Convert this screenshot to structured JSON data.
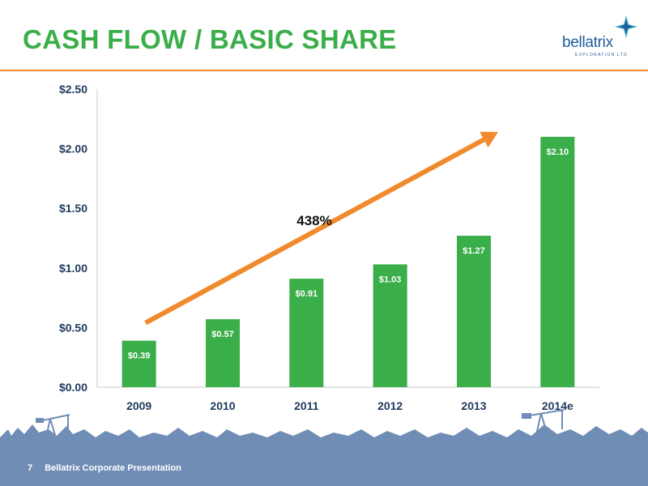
{
  "slide": {
    "title": "CASH FLOW / BASIC SHARE",
    "page_number": "7",
    "footer": "Bellatrix Corporate Presentation"
  },
  "logo": {
    "name": "bellatrix",
    "tagline": "EXPLORATION LTD",
    "icon": "star-icon"
  },
  "colors": {
    "title": "#3aae49",
    "bar": "#3aae49",
    "arrow": "#f08a2c",
    "axis_text": "#1f3a5c",
    "footer": "#6f8db5"
  },
  "chart_data": {
    "type": "bar",
    "categories": [
      "2009",
      "2010",
      "2011",
      "2012",
      "2013",
      "2014e"
    ],
    "values": [
      0.39,
      0.57,
      0.91,
      1.03,
      1.27,
      2.1
    ],
    "data_labels": [
      "$0.39",
      "$0.57",
      "$0.91",
      "$1.03",
      "$1.27",
      "$2.10"
    ],
    "yticks": [
      0,
      0.5,
      1.0,
      1.5,
      2.0,
      2.5
    ],
    "ytick_labels": [
      "$0.00",
      "$0.50",
      "$1.00",
      "$1.50",
      "$2.00",
      "$2.50"
    ],
    "ylim": [
      0,
      2.5
    ],
    "annotation": "438%",
    "grid": false,
    "legend": "none"
  }
}
